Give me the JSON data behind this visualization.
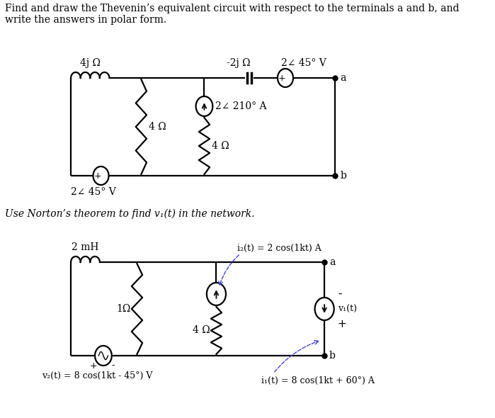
{
  "title1": "Find and draw the Thevenin’s equivalent circuit with respect to the terminals a and b, and\nwrite the answers in polar form.",
  "title2": "Use Norton’s theorem to find v₁(t) in the network.",
  "bg_color": "#ffffff",
  "circuit1": {
    "inductor_label": "4j Ω",
    "cap_label": "-2j Ω",
    "vs_top_label": "2∠ 45° V",
    "vs_bot_label": "2∠ 45° V",
    "r1_label": "4 Ω",
    "r2_label": "4 Ω",
    "cs_label": "2∠ 210° A",
    "term_a": "a",
    "term_b": "b"
  },
  "circuit2": {
    "ind_label": "2 mH",
    "r1_label": "1Ω",
    "r2_label": "4 Ω",
    "cs_label": "i₂(t) = 2 cos(1kt) A",
    "vs_label": "v₂(t) = 8 cos(1kt - 45°) V",
    "dep_label": "v₁(t)",
    "i1_label": "i₁(t) = 8 cos(1kt + 60°) A",
    "term_a": "a",
    "term_b": "b"
  }
}
